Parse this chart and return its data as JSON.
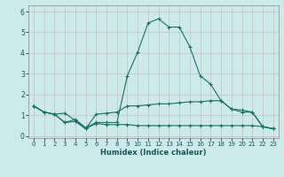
{
  "xlabel": "Humidex (Indice chaleur)",
  "background_color": "#cceaea",
  "line_color": "#1a7060",
  "xlim": [
    -0.5,
    23.5
  ],
  "ylim": [
    -0.1,
    6.3
  ],
  "x_ticks": [
    0,
    1,
    2,
    3,
    4,
    5,
    6,
    7,
    8,
    9,
    10,
    11,
    12,
    13,
    14,
    15,
    16,
    17,
    18,
    19,
    20,
    21,
    22,
    23
  ],
  "y_ticks": [
    0,
    1,
    2,
    3,
    4,
    5,
    6
  ],
  "line1_y": [
    1.45,
    1.15,
    1.05,
    0.65,
    0.8,
    0.4,
    0.65,
    0.65,
    0.65,
    2.9,
    4.05,
    5.45,
    5.65,
    5.25,
    5.25,
    4.3,
    2.9,
    2.5,
    1.7,
    1.3,
    1.15,
    1.15,
    0.45,
    0.35
  ],
  "line2_y": [
    1.45,
    1.15,
    1.05,
    1.1,
    0.75,
    0.35,
    1.05,
    1.1,
    1.15,
    1.45,
    1.45,
    1.5,
    1.55,
    1.55,
    1.6,
    1.65,
    1.65,
    1.7,
    1.7,
    1.3,
    1.25,
    1.15,
    0.45,
    0.35
  ],
  "line3_y": [
    1.45,
    1.15,
    1.05,
    0.65,
    0.7,
    0.35,
    0.6,
    0.55,
    0.55,
    0.55,
    0.5,
    0.5,
    0.5,
    0.5,
    0.5,
    0.5,
    0.5,
    0.5,
    0.5,
    0.5,
    0.5,
    0.5,
    0.45,
    0.35
  ]
}
